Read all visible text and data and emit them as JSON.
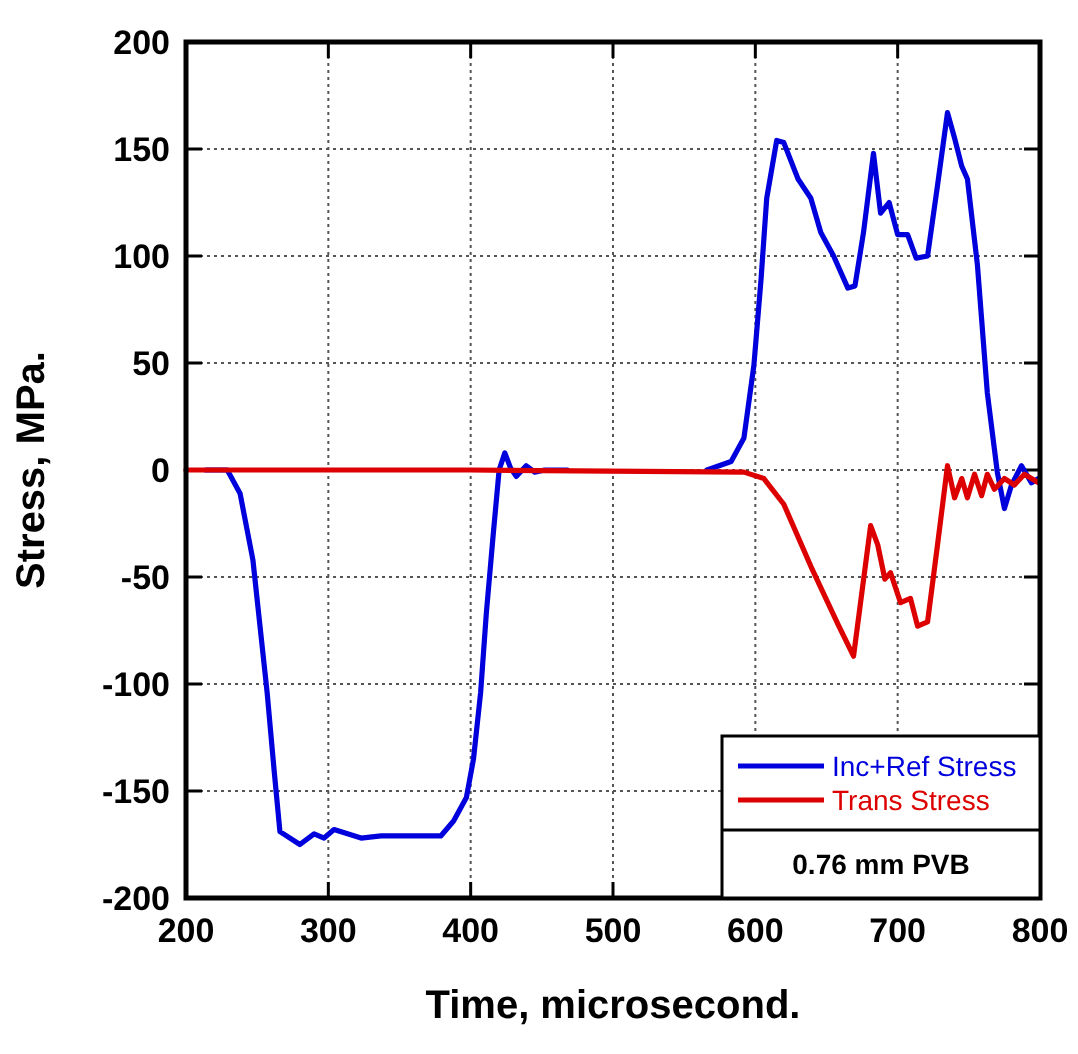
{
  "chart_data": {
    "type": "line",
    "xlabel": "Time, microsecond.",
    "ylabel": "Stress, MPa.",
    "xlim": [
      200,
      800
    ],
    "ylim": [
      -200,
      200
    ],
    "xticks": [
      200,
      300,
      400,
      500,
      600,
      700,
      800
    ],
    "yticks": [
      -200,
      -150,
      -100,
      -50,
      0,
      50,
      100,
      150,
      200
    ],
    "grid": true,
    "legend": "bottom right",
    "line_style": "solid",
    "marker": "none",
    "annotations": [
      "0.76 mm PVB"
    ],
    "series": [
      {
        "name": "Inc+Ref Stress",
        "color": "#0000dd",
        "x": [
          214,
          229,
          238,
          247,
          252,
          257,
          262,
          266,
          280,
          290,
          297,
          304,
          323,
          337,
          379,
          388,
          397,
          402,
          407,
          411,
          416,
          420,
          424,
          428,
          432,
          439,
          445,
          452,
          459,
          468,
          500,
          566,
          583,
          592,
          599,
          604,
          608,
          615,
          620,
          630,
          639,
          646,
          655,
          665,
          670,
          676,
          683,
          688,
          694,
          700,
          707,
          713,
          721,
          728,
          735,
          740,
          745,
          749,
          756,
          763,
          770,
          775,
          780,
          787,
          794,
          799
        ],
        "values": [
          0,
          0,
          -11,
          -42,
          -73,
          -104,
          -141,
          -169,
          -175,
          -170,
          -172,
          -168,
          -172,
          -171,
          -171,
          -164,
          -153,
          -135,
          -104,
          -67,
          -29,
          0,
          8,
          1,
          -3,
          2,
          -1,
          0,
          0,
          0,
          null,
          0,
          4,
          15,
          49,
          89,
          127,
          154,
          153,
          136,
          127,
          111,
          100,
          85,
          86,
          111,
          148,
          120,
          125,
          110,
          110,
          99,
          100,
          133,
          167,
          155,
          142,
          136,
          96,
          36,
          -1,
          -18,
          -7,
          2,
          -6,
          -4
        ]
      },
      {
        "name": "Trans Stress",
        "color": "#dd0000",
        "x": [
          200,
          400,
          592,
          606,
          620,
          639,
          658,
          669,
          681,
          686,
          691,
          695,
          702,
          709,
          714,
          721,
          728,
          735,
          740,
          745,
          749,
          754,
          759,
          763,
          768,
          775,
          782,
          789,
          799
        ],
        "values": [
          0,
          0,
          -1,
          -4,
          -16,
          -45,
          -72,
          -87,
          -26,
          -35,
          -51,
          -48,
          -62,
          -60,
          -73,
          -71,
          -35,
          2,
          -13,
          -4,
          -13,
          -2,
          -12,
          -2,
          -9,
          -4,
          -7,
          -2,
          -6
        ]
      }
    ]
  }
}
